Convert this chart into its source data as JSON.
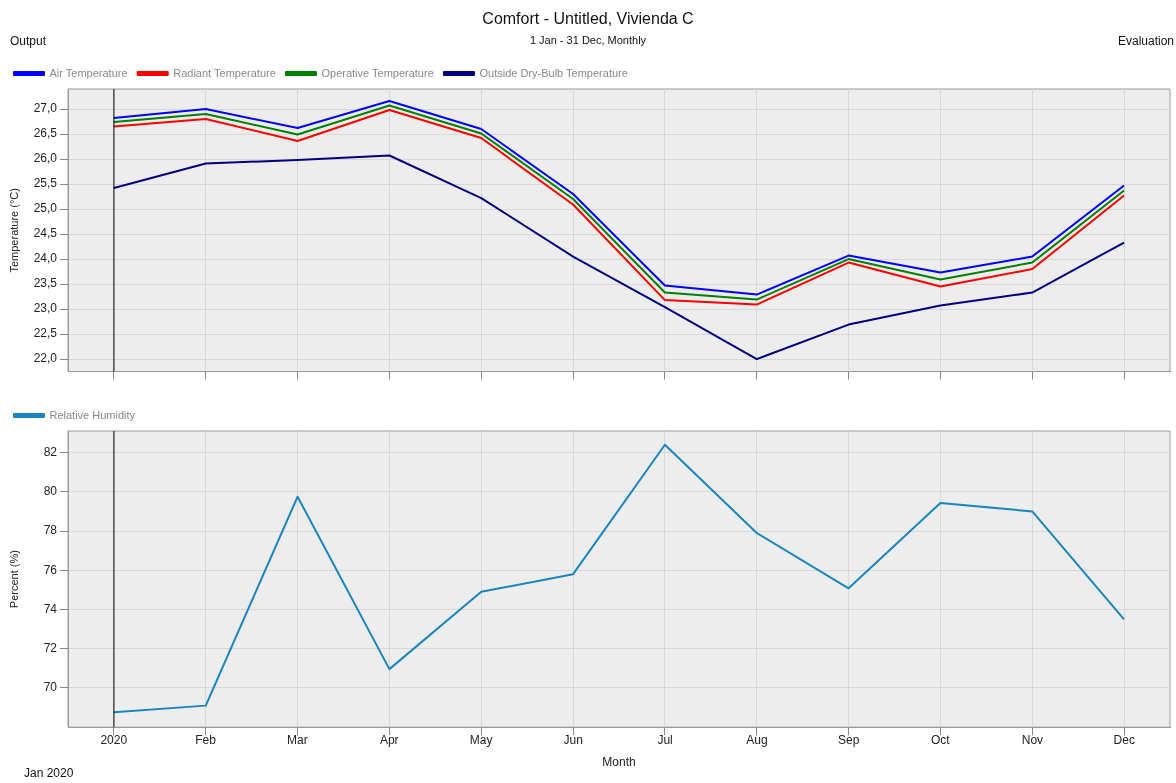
{
  "chart_data": [
    {
      "type": "line",
      "title": "Comfort - Untitled, Vivienda C",
      "subtitle": "1 Jan - 31 Dec, Monthly",
      "annotations": [
        "Output",
        "Evaluation"
      ],
      "categories": [
        null,
        null,
        null,
        null,
        null,
        null,
        null,
        null,
        null,
        null,
        null,
        null
      ],
      "series": [
        {
          "name": "Air Temperature",
          "color": "#0000ff",
          "values": [
            26.82,
            27.0,
            26.62,
            27.16,
            26.6,
            25.3,
            23.47,
            23.29,
            24.07,
            23.73,
            24.05,
            25.47
          ]
        },
        {
          "name": "Radiant Temperature",
          "color": "#ff0000",
          "values": [
            26.65,
            26.8,
            26.36,
            26.98,
            26.42,
            25.09,
            23.18,
            23.09,
            23.93,
            23.45,
            23.8,
            25.27
          ]
        },
        {
          "name": "Operative Temperature",
          "color": "#008000",
          "values": [
            26.74,
            26.9,
            26.49,
            27.07,
            26.51,
            25.2,
            23.33,
            23.19,
            24.0,
            23.59,
            23.93,
            25.37
          ]
        },
        {
          "name": "Outside Dry-Bulb Temperature",
          "color": "#000080",
          "values": [
            25.42,
            25.91,
            25.98,
            26.07,
            25.22,
            24.05,
            23.04,
            22.0,
            22.69,
            23.07,
            23.33,
            24.33
          ]
        }
      ],
      "ylabel": "Temperature (°C)",
      "ylim": [
        21.75,
        27.4
      ],
      "yticks": [
        {
          "value": 22,
          "label": "22,0"
        },
        {
          "value": 22.5,
          "label": "22,5"
        },
        {
          "value": 23,
          "label": "23,0"
        },
        {
          "value": 23.5,
          "label": "23,5"
        },
        {
          "value": 24,
          "label": "24,0"
        },
        {
          "value": 24.5,
          "label": "24,5"
        },
        {
          "value": 25,
          "label": "25,0"
        },
        {
          "value": 25.5,
          "label": "25,5"
        },
        {
          "value": 26,
          "label": "26,0"
        },
        {
          "value": 26.5,
          "label": "26,5"
        },
        {
          "value": 27,
          "label": "27,0"
        }
      ],
      "grid": true,
      "legend": "top left"
    },
    {
      "type": "line",
      "annotations": [
        "Jan  2020"
      ],
      "categories": [
        "2020",
        "Feb",
        "Mar",
        "Apr",
        "May",
        "Jun",
        "Jul",
        "Aug",
        "Sep",
        "Oct",
        "Nov",
        "Dec"
      ],
      "series": [
        {
          "name": "Relative Humidity",
          "color": "#1a85be",
          "values": [
            68.76,
            69.1,
            79.75,
            70.96,
            74.9,
            75.8,
            82.4,
            77.9,
            75.08,
            79.43,
            79.0,
            73.5
          ]
        }
      ],
      "xlabel": "Month",
      "ylabel": "Percent (%)",
      "ylim": [
        68,
        83.1
      ],
      "yticks": [
        70,
        72,
        74,
        76,
        78,
        80,
        82
      ],
      "grid": true,
      "legend": "top left",
      "ref_lines": [
        {
          "axis": "x",
          "value": "2020",
          "color": "#000000"
        }
      ]
    }
  ]
}
